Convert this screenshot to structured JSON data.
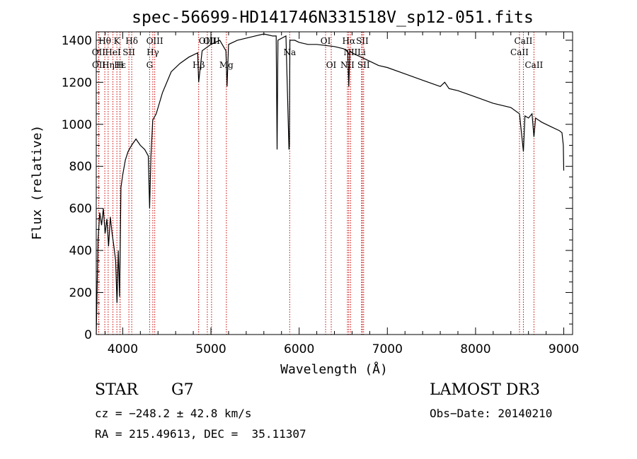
{
  "chart_data": {
    "type": "line",
    "title": "spec-56699-HD141746N331518V_sp12-051.fits",
    "xlabel": "Wavelength (Å)",
    "ylabel": "Flux (relative)",
    "xlim": [
      3700,
      9100
    ],
    "ylim": [
      0,
      1440
    ],
    "xticks": [
      4000,
      5000,
      6000,
      7000,
      8000,
      9000
    ],
    "yticks": [
      0,
      200,
      400,
      600,
      800,
      1000,
      1200,
      1400
    ],
    "grid": false,
    "series": [
      {
        "name": "flux",
        "x": [
          3700,
          3720,
          3740,
          3760,
          3780,
          3800,
          3820,
          3840,
          3860,
          3880,
          3900,
          3920,
          3935,
          3950,
          3965,
          3980,
          4000,
          4030,
          4060,
          4100,
          4150,
          4200,
          4250,
          4290,
          4305,
          4320,
          4340,
          4380,
          4450,
          4550,
          4650,
          4750,
          4850,
          4861,
          4900,
          5000,
          5100,
          5170,
          5183,
          5200,
          5300,
          5400,
          5500,
          5600,
          5700,
          5740,
          5750,
          5760,
          5850,
          5885,
          5890,
          5895,
          5950,
          6000,
          6100,
          6200,
          6300,
          6400,
          6500,
          6550,
          6563,
          6575,
          6600,
          6700,
          6800,
          6900,
          7000,
          7200,
          7400,
          7600,
          7650,
          7700,
          7800,
          8000,
          8200,
          8400,
          8498,
          8542,
          8560,
          8600,
          8640,
          8662,
          8680,
          8750,
          8850,
          8950,
          8980,
          8995,
          9000
        ],
        "y": [
          0,
          450,
          580,
          520,
          600,
          480,
          550,
          420,
          560,
          480,
          420,
          350,
          150,
          400,
          180,
          700,
          760,
          830,
          870,
          900,
          930,
          900,
          880,
          850,
          600,
          850,
          1020,
          1050,
          1150,
          1250,
          1290,
          1320,
          1340,
          1200,
          1350,
          1380,
          1400,
          1350,
          1180,
          1380,
          1400,
          1410,
          1420,
          1430,
          1420,
          1420,
          880,
          1400,
          1420,
          880,
          900,
          1400,
          1400,
          1390,
          1380,
          1380,
          1375,
          1370,
          1360,
          1350,
          1180,
          1350,
          1340,
          1320,
          1300,
          1280,
          1270,
          1240,
          1210,
          1180,
          1200,
          1170,
          1160,
          1130,
          1100,
          1080,
          1050,
          870,
          1040,
          1030,
          1050,
          940,
          1030,
          1010,
          990,
          970,
          960,
          900,
          780
        ]
      }
    ],
    "lines": [
      {
        "label": "Hθ",
        "wl": 3797,
        "row": 1
      },
      {
        "label": "OII",
        "wl": 3727,
        "row": 2
      },
      {
        "label": "OII",
        "wl": 3729,
        "row": 3
      },
      {
        "label": "K",
        "wl": 3934,
        "row": 1
      },
      {
        "label": "Hε",
        "wl": 3970,
        "row": 3
      },
      {
        "label": "Hδ",
        "wl": 4102,
        "row": 1
      },
      {
        "label": "HeI",
        "wl": 3889,
        "row": 2
      },
      {
        "label": "H",
        "wl": 3969,
        "row": 3
      },
      {
        "label": "SII",
        "wl": 4070,
        "row": 2
      },
      {
        "label": "Hη",
        "wl": 3835,
        "row": 3
      },
      {
        "label": "OIII",
        "wl": 4363,
        "row": 1
      },
      {
        "label": "Hγ",
        "wl": 4341,
        "row": 2
      },
      {
        "label": "G",
        "wl": 4305,
        "row": 3
      },
      {
        "label": "Hβ",
        "wl": 4861,
        "row": 3
      },
      {
        "label": "OIII",
        "wl": 4959,
        "row": 1
      },
      {
        "label": "OIII",
        "wl": 5007,
        "row": 1
      },
      {
        "label": "Mg",
        "wl": 5175,
        "row": 3
      },
      {
        "label": "Na",
        "wl": 5893,
        "row": 2
      },
      {
        "label": "OI",
        "wl": 6300,
        "row": 1
      },
      {
        "label": "OI",
        "wl": 6364,
        "row": 3
      },
      {
        "label": "NII",
        "wl": 6548,
        "row": 3
      },
      {
        "label": "Hα",
        "wl": 6563,
        "row": 1
      },
      {
        "label": "NII",
        "wl": 6583,
        "row": 2
      },
      {
        "label": "Li",
        "wl": 6708,
        "row": 2
      },
      {
        "label": "SII",
        "wl": 6716,
        "row": 1
      },
      {
        "label": "SII",
        "wl": 6731,
        "row": 3
      },
      {
        "label": "CaII",
        "wl": 8498,
        "row": 2
      },
      {
        "label": "CaII",
        "wl": 8542,
        "row": 1
      },
      {
        "label": "CaII",
        "wl": 8662,
        "row": 3
      }
    ]
  },
  "info": {
    "class": "STAR",
    "subclass": "G7",
    "cz": "cz = −248.2 ± 42.8 km/s",
    "radec": "RA = 215.49613, DEC =  35.11307",
    "survey": "LAMOST DR3",
    "obsdate": "Obs−Date: 20140210"
  },
  "colors": {
    "line_marker": "#cc0000",
    "spectrum": "#000000"
  }
}
